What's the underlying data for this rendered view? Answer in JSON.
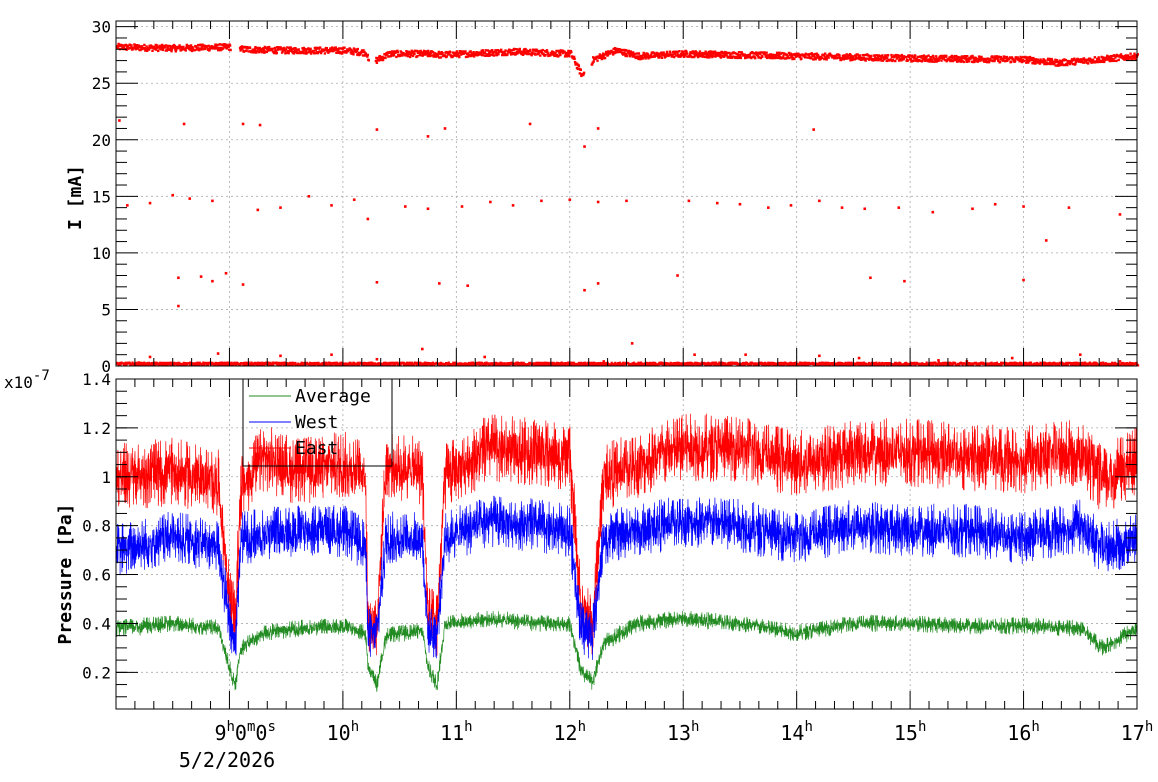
{
  "chart_data": [
    {
      "type": "scatter",
      "ylabel": "I [mA]",
      "ylim": [
        0,
        30.5
      ],
      "yticks": [
        0,
        5,
        10,
        15,
        20,
        25,
        30
      ],
      "xlim": [
        8.0,
        17.0
      ],
      "grid": true,
      "series": [
        {
          "color": "#ff0000",
          "main_band": [
            [
              8.0,
              28.3
            ],
            [
              8.5,
              28.2
            ],
            [
              9.0,
              28.3
            ],
            [
              9.1,
              28.1
            ],
            [
              9.5,
              28.0
            ],
            [
              10.0,
              28.0
            ],
            [
              10.2,
              27.8
            ],
            [
              10.22,
              26.8
            ],
            [
              10.4,
              27.7
            ],
            [
              10.8,
              27.7
            ],
            [
              10.85,
              27.6
            ],
            [
              11.5,
              27.9
            ],
            [
              12.0,
              27.7
            ],
            [
              12.1,
              25.8
            ],
            [
              12.2,
              27.2
            ],
            [
              12.4,
              28.0
            ],
            [
              12.6,
              27.5
            ],
            [
              13.0,
              27.7
            ],
            [
              14.0,
              27.5
            ],
            [
              15.0,
              27.3
            ],
            [
              16.0,
              27.2
            ],
            [
              16.3,
              26.9
            ],
            [
              17.0,
              27.5
            ]
          ],
          "outliers": [
            [
              8.03,
              21.7
            ],
            [
              8.6,
              21.4
            ],
            [
              9.12,
              21.4
            ],
            [
              9.27,
              21.3
            ],
            [
              10.3,
              20.9
            ],
            [
              10.75,
              20.3
            ],
            [
              10.9,
              21.0
            ],
            [
              11.65,
              21.4
            ],
            [
              12.13,
              19.4
            ],
            [
              12.25,
              21.0
            ],
            [
              14.15,
              20.9
            ],
            [
              8.1,
              14.2
            ],
            [
              8.3,
              14.4
            ],
            [
              8.5,
              15.1
            ],
            [
              8.65,
              14.8
            ],
            [
              8.85,
              14.6
            ],
            [
              9.25,
              13.8
            ],
            [
              9.45,
              14.0
            ],
            [
              9.7,
              15.0
            ],
            [
              9.9,
              14.2
            ],
            [
              10.1,
              14.7
            ],
            [
              10.22,
              13.0
            ],
            [
              10.55,
              14.1
            ],
            [
              10.75,
              13.9
            ],
            [
              11.05,
              14.1
            ],
            [
              11.3,
              14.5
            ],
            [
              11.5,
              14.2
            ],
            [
              11.75,
              14.6
            ],
            [
              12.0,
              14.7
            ],
            [
              12.25,
              14.5
            ],
            [
              12.5,
              14.6
            ],
            [
              13.05,
              14.6
            ],
            [
              13.3,
              14.4
            ],
            [
              13.5,
              14.3
            ],
            [
              13.75,
              14.0
            ],
            [
              13.95,
              14.2
            ],
            [
              14.2,
              14.6
            ],
            [
              14.4,
              14.0
            ],
            [
              14.6,
              13.9
            ],
            [
              14.9,
              14.0
            ],
            [
              15.2,
              13.6
            ],
            [
              15.55,
              13.9
            ],
            [
              15.75,
              14.3
            ],
            [
              16.0,
              14.1
            ],
            [
              16.2,
              11.1
            ],
            [
              16.4,
              14.0
            ],
            [
              16.85,
              13.4
            ],
            [
              8.55,
              7.8
            ],
            [
              8.55,
              5.3
            ],
            [
              8.75,
              7.9
            ],
            [
              8.85,
              7.5
            ],
            [
              8.97,
              8.2
            ],
            [
              9.12,
              7.2
            ],
            [
              10.3,
              7.4
            ],
            [
              10.85,
              7.3
            ],
            [
              11.1,
              7.1
            ],
            [
              12.13,
              6.7
            ],
            [
              12.25,
              7.3
            ],
            [
              12.95,
              8.0
            ],
            [
              14.65,
              7.8
            ],
            [
              14.95,
              7.5
            ],
            [
              16.0,
              7.6
            ],
            [
              8.2,
              0.3
            ],
            [
              8.3,
              0.8
            ],
            [
              8.9,
              1.1
            ],
            [
              9.45,
              0.9
            ],
            [
              9.9,
              1.0
            ],
            [
              10.3,
              0.6
            ],
            [
              10.7,
              1.5
            ],
            [
              11.25,
              0.8
            ],
            [
              12.3,
              0.4
            ],
            [
              12.55,
              2.0
            ],
            [
              13.1,
              1.0
            ],
            [
              13.55,
              1.0
            ],
            [
              14.2,
              0.9
            ],
            [
              14.55,
              0.7
            ],
            [
              15.25,
              0.5
            ],
            [
              15.5,
              0.4
            ],
            [
              15.9,
              0.7
            ],
            [
              16.5,
              1.0
            ],
            [
              16.85,
              0.4
            ]
          ]
        }
      ]
    },
    {
      "type": "line",
      "ylabel": "Pressure [Pa]",
      "exponent_label": "x10",
      "exponent_power": "-7",
      "ylim": [
        0.05,
        1.4
      ],
      "yticks": [
        0.2,
        0.4,
        0.6,
        0.8,
        1,
        1.2,
        1.4
      ],
      "xlim": [
        8.0,
        17.0
      ],
      "xlabel_date": "5/2/2026",
      "grid": true,
      "legend": {
        "position": "top-left",
        "entries": [
          "Average",
          "West",
          "East"
        ]
      },
      "series": [
        {
          "name": "East",
          "color": "#ff0000",
          "points": [
            [
              8.0,
              1.0
            ],
            [
              8.5,
              1.02
            ],
            [
              8.9,
              0.98
            ],
            [
              9.0,
              0.5
            ],
            [
              9.05,
              0.4
            ],
            [
              9.1,
              0.95
            ],
            [
              9.3,
              1.08
            ],
            [
              9.6,
              1.02
            ],
            [
              10.0,
              1.05
            ],
            [
              10.2,
              1.02
            ],
            [
              10.22,
              0.4
            ],
            [
              10.3,
              0.4
            ],
            [
              10.38,
              1.05
            ],
            [
              10.7,
              1.02
            ],
            [
              10.75,
              0.42
            ],
            [
              10.83,
              0.4
            ],
            [
              10.9,
              1.0
            ],
            [
              11.3,
              1.12
            ],
            [
              11.7,
              1.1
            ],
            [
              12.0,
              1.08
            ],
            [
              12.1,
              0.45
            ],
            [
              12.2,
              0.4
            ],
            [
              12.3,
              1.0
            ],
            [
              12.6,
              1.05
            ],
            [
              13.0,
              1.12
            ],
            [
              13.5,
              1.12
            ],
            [
              14.0,
              1.05
            ],
            [
              14.5,
              1.1
            ],
            [
              15.0,
              1.1
            ],
            [
              15.5,
              1.08
            ],
            [
              16.0,
              1.07
            ],
            [
              16.5,
              1.1
            ],
            [
              16.7,
              0.98
            ],
            [
              17.0,
              1.07
            ]
          ]
        },
        {
          "name": "West",
          "color": "#0000ff",
          "points": [
            [
              8.0,
              0.7
            ],
            [
              8.5,
              0.75
            ],
            [
              8.9,
              0.72
            ],
            [
              9.0,
              0.4
            ],
            [
              9.05,
              0.3
            ],
            [
              9.1,
              0.75
            ],
            [
              9.5,
              0.78
            ],
            [
              10.0,
              0.78
            ],
            [
              10.2,
              0.72
            ],
            [
              10.22,
              0.36
            ],
            [
              10.3,
              0.36
            ],
            [
              10.38,
              0.75
            ],
            [
              10.7,
              0.75
            ],
            [
              10.75,
              0.36
            ],
            [
              10.83,
              0.36
            ],
            [
              10.9,
              0.75
            ],
            [
              11.3,
              0.82
            ],
            [
              11.7,
              0.8
            ],
            [
              12.0,
              0.78
            ],
            [
              12.1,
              0.38
            ],
            [
              12.2,
              0.35
            ],
            [
              12.3,
              0.75
            ],
            [
              12.6,
              0.78
            ],
            [
              13.0,
              0.82
            ],
            [
              13.5,
              0.8
            ],
            [
              14.0,
              0.75
            ],
            [
              14.5,
              0.8
            ],
            [
              15.0,
              0.78
            ],
            [
              15.5,
              0.78
            ],
            [
              16.0,
              0.75
            ],
            [
              16.5,
              0.8
            ],
            [
              16.7,
              0.7
            ],
            [
              17.0,
              0.75
            ]
          ]
        },
        {
          "name": "Average",
          "color": "#228b22",
          "points": [
            [
              8.0,
              0.38
            ],
            [
              8.5,
              0.4
            ],
            [
              8.9,
              0.38
            ],
            [
              9.0,
              0.22
            ],
            [
              9.05,
              0.14
            ],
            [
              9.1,
              0.3
            ],
            [
              9.3,
              0.36
            ],
            [
              9.6,
              0.38
            ],
            [
              10.0,
              0.39
            ],
            [
              10.2,
              0.36
            ],
            [
              10.22,
              0.22
            ],
            [
              10.3,
              0.15
            ],
            [
              10.38,
              0.35
            ],
            [
              10.7,
              0.37
            ],
            [
              10.75,
              0.22
            ],
            [
              10.83,
              0.15
            ],
            [
              10.9,
              0.4
            ],
            [
              11.3,
              0.42
            ],
            [
              11.7,
              0.4
            ],
            [
              12.0,
              0.4
            ],
            [
              12.1,
              0.2
            ],
            [
              12.2,
              0.16
            ],
            [
              12.3,
              0.32
            ],
            [
              12.6,
              0.4
            ],
            [
              13.0,
              0.42
            ],
            [
              13.5,
              0.4
            ],
            [
              14.0,
              0.36
            ],
            [
              14.5,
              0.4
            ],
            [
              15.0,
              0.4
            ],
            [
              15.5,
              0.39
            ],
            [
              16.0,
              0.39
            ],
            [
              16.5,
              0.38
            ],
            [
              16.7,
              0.3
            ],
            [
              17.0,
              0.38
            ]
          ]
        }
      ]
    }
  ],
  "x_axis": {
    "ticks": [
      {
        "h": 9,
        "label": "9",
        "suffix": "0",
        "suffix2": "0"
      },
      {
        "h": 10,
        "label": "10"
      },
      {
        "h": 11,
        "label": "11"
      },
      {
        "h": 12,
        "label": "12"
      },
      {
        "h": 13,
        "label": "13"
      },
      {
        "h": 14,
        "label": "14"
      },
      {
        "h": 15,
        "label": "15"
      },
      {
        "h": 16,
        "label": "16"
      },
      {
        "h": 17,
        "label": "17"
      }
    ],
    "unit_h": "h",
    "unit_m": "m",
    "unit_s": "s"
  }
}
